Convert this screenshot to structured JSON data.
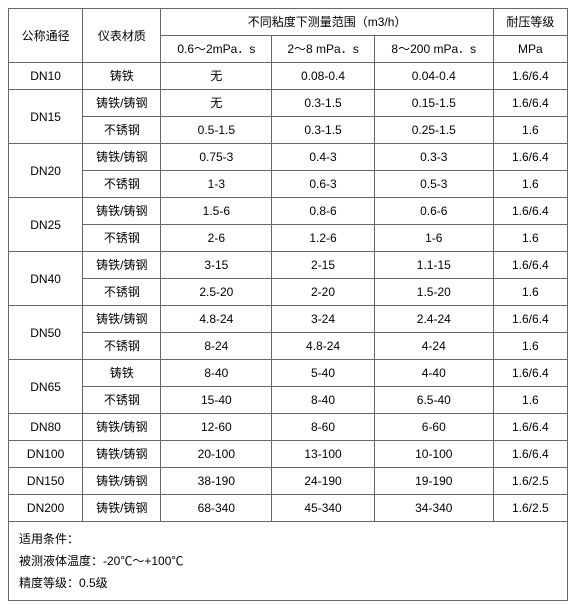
{
  "headers": {
    "nominal_dia": "公称通径",
    "material": "仪表材质",
    "range_group": "不同粘度下测量范围（m3/h）",
    "pressure": "耐压等级",
    "col1": "0.6～2mPa．s",
    "col2": "2～8 mPa．s",
    "col3": "8～200 mPa．s",
    "pressure_unit": "MPa"
  },
  "rows": [
    {
      "dn": "DN10",
      "mat": "铸铁",
      "v1": "无",
      "v2": "0.08-0.4",
      "v3": "0.04-0.4",
      "p": "1.6/6.4",
      "dnspan": 1
    },
    {
      "dn": "DN15",
      "mat": "铸铁/铸钢",
      "v1": "无",
      "v2": "0.3-1.5",
      "v3": "0.15-1.5",
      "p": "1.6/6.4",
      "dnspan": 2
    },
    {
      "dn": "",
      "mat": "不锈钢",
      "v1": "0.5-1.5",
      "v2": "0.3-1.5",
      "v3": "0.25-1.5",
      "p": "1.6",
      "dnspan": 0
    },
    {
      "dn": "DN20",
      "mat": "铸铁/铸钢",
      "v1": "0.75-3",
      "v2": "0.4-3",
      "v3": "0.3-3",
      "p": "1.6/6.4",
      "dnspan": 2
    },
    {
      "dn": "",
      "mat": "不锈钢",
      "v1": "1-3",
      "v2": "0.6-3",
      "v3": "0.5-3",
      "p": "1.6",
      "dnspan": 0
    },
    {
      "dn": "DN25",
      "mat": "铸铁/铸钢",
      "v1": "1.5-6",
      "v2": "0.8-6",
      "v3": "0.6-6",
      "p": "1.6/6.4",
      "dnspan": 2
    },
    {
      "dn": "",
      "mat": "不锈钢",
      "v1": "2-6",
      "v2": "1.2-6",
      "v3": "1-6",
      "p": "1.6",
      "dnspan": 0
    },
    {
      "dn": "DN40",
      "mat": "铸铁/铸钢",
      "v1": "3-15",
      "v2": "2-15",
      "v3": "1.1-15",
      "p": "1.6/6.4",
      "dnspan": 2
    },
    {
      "dn": "",
      "mat": "不锈钢",
      "v1": "2.5-20",
      "v2": "2-20",
      "v3": "1.5-20",
      "p": "1.6",
      "dnspan": 0
    },
    {
      "dn": "DN50",
      "mat": "铸铁/铸钢",
      "v1": "4.8-24",
      "v2": "3-24",
      "v3": "2.4-24",
      "p": "1.6/6.4",
      "dnspan": 2
    },
    {
      "dn": "",
      "mat": "不锈钢",
      "v1": "8-24",
      "v2": "4.8-24",
      "v3": "4-24",
      "p": "1.6",
      "dnspan": 0
    },
    {
      "dn": "DN65",
      "mat": "铸铁",
      "v1": "8-40",
      "v2": "5-40",
      "v3": "4-40",
      "p": "1.6/6.4",
      "dnspan": 2
    },
    {
      "dn": "",
      "mat": "不锈钢",
      "v1": "15-40",
      "v2": "8-40",
      "v3": "6.5-40",
      "p": "1.6",
      "dnspan": 0
    },
    {
      "dn": "DN80",
      "mat": "铸铁/铸钢",
      "v1": "12-60",
      "v2": "8-60",
      "v3": "6-60",
      "p": "1.6/6.4",
      "dnspan": 1
    },
    {
      "dn": "DN100",
      "mat": "铸铁/铸钢",
      "v1": "20-100",
      "v2": "13-100",
      "v3": "10-100",
      "p": "1.6/6.4",
      "dnspan": 1
    },
    {
      "dn": "DN150",
      "mat": "铸铁/铸钢",
      "v1": "38-190",
      "v2": "24-190",
      "v3": "19-190",
      "p": "1.6/2.5",
      "dnspan": 1
    },
    {
      "dn": "DN200",
      "mat": "铸铁/铸钢",
      "v1": "68-340",
      "v2": "45-340",
      "v3": "34-340",
      "p": "1.6/2.5",
      "dnspan": 1
    }
  ],
  "notes": {
    "line1": "适用条件：",
    "line2": "被测液体温度：-20℃～+100℃",
    "line3": "精度等级：0.5级"
  }
}
